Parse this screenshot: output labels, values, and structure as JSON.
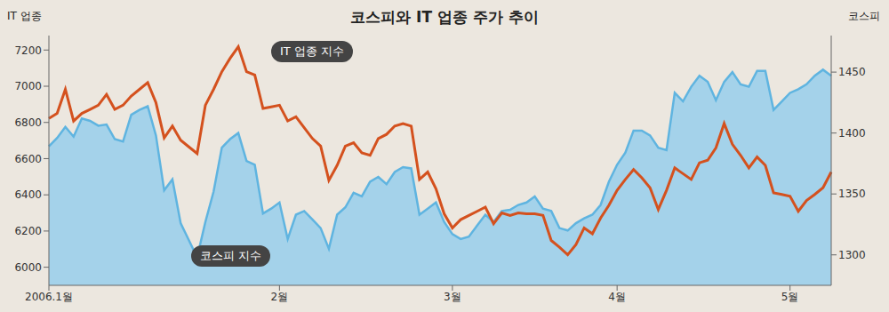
{
  "chart_data": {
    "type": "line",
    "title": "코스피와 IT 업종 주가 추이",
    "y_label": "IT 업종",
    "y2_label": "코스피",
    "categories": [
      "2006.1월",
      null,
      null,
      null,
      null,
      null,
      null,
      null,
      null,
      null,
      null,
      null,
      null,
      null,
      null,
      null,
      null,
      null,
      null,
      null,
      null,
      null,
      null,
      null,
      null,
      null,
      null,
      null,
      "2월",
      null,
      null,
      null,
      null,
      null,
      null,
      null,
      null,
      null,
      null,
      null,
      null,
      null,
      null,
      null,
      null,
      null,
      null,
      null,
      null,
      "3월",
      null,
      null,
      null,
      null,
      null,
      null,
      null,
      null,
      null,
      null,
      null,
      null,
      null,
      null,
      null,
      null,
      null,
      null,
      null,
      "4월",
      null,
      null,
      null,
      null,
      null,
      null,
      null,
      null,
      null,
      null,
      null,
      null,
      null,
      null,
      null,
      null,
      null,
      null,
      null,
      null,
      "5월",
      null,
      null,
      null,
      null,
      null
    ],
    "series": [
      {
        "name": "IT 업종 지수",
        "color": "#d4511e",
        "values": [
          6822,
          6850,
          6983,
          6808,
          6850,
          6872,
          6895,
          6955,
          6872,
          6895,
          6946,
          6983,
          7020,
          6909,
          6715,
          6780,
          6702,
          6665,
          6628,
          6895,
          6983,
          7080,
          7154,
          7218,
          7080,
          7062,
          6877,
          6886,
          6895,
          6808,
          6831,
          6771,
          6711,
          6669,
          6480,
          6563,
          6669,
          6688,
          6632,
          6618,
          6711,
          6734,
          6780,
          6794,
          6780,
          6485,
          6526,
          6434,
          6295,
          6217,
          6263,
          6286,
          6309,
          6332,
          6240,
          6300,
          6286,
          6300,
          6295,
          6295,
          6286,
          6148,
          6111,
          6069,
          6125,
          6217,
          6185,
          6272,
          6342,
          6425,
          6485,
          6540,
          6494,
          6439,
          6319,
          6425,
          6549,
          6517,
          6485,
          6577,
          6591,
          6660,
          6794,
          6679,
          6618,
          6549,
          6609,
          6563,
          6411,
          6402,
          6392,
          6309,
          6369,
          6402,
          6439,
          6526
        ]
      },
      {
        "name": "코스피 지수",
        "color": "#8ccbed",
        "type": "area",
        "axis": "y2",
        "values": [
          1389,
          1396,
          1405,
          1397,
          1412,
          1410,
          1406,
          1407,
          1395,
          1393,
          1415,
          1419,
          1422,
          1398,
          1353,
          1362,
          1326,
          1312,
          1298,
          1327,
          1352,
          1388,
          1395,
          1400,
          1377,
          1374,
          1334,
          1338,
          1343,
          1313,
          1333,
          1336,
          1329,
          1322,
          1305,
          1333,
          1339,
          1351,
          1348,
          1360,
          1364,
          1358,
          1368,
          1372,
          1371,
          1333,
          1338,
          1343,
          1327,
          1317,
          1313,
          1315,
          1324,
          1333,
          1327,
          1336,
          1337,
          1341,
          1343,
          1348,
          1338,
          1336,
          1322,
          1320,
          1326,
          1330,
          1333,
          1341,
          1360,
          1374,
          1384,
          1402,
          1402,
          1398,
          1388,
          1386,
          1433,
          1426,
          1438,
          1447,
          1442,
          1427,
          1442,
          1450,
          1440,
          1438,
          1451,
          1451,
          1419,
          1426,
          1433,
          1436,
          1440,
          1447,
          1452,
          1447
        ]
      }
    ],
    "ylim": [
      5900,
      7280
    ],
    "yticks": [
      6000,
      6200,
      6400,
      6600,
      6800,
      7000,
      7200
    ],
    "y2lim": [
      1275,
      1480
    ],
    "y2ticks": [
      1300,
      1350,
      1400,
      1450
    ],
    "grid": false
  }
}
